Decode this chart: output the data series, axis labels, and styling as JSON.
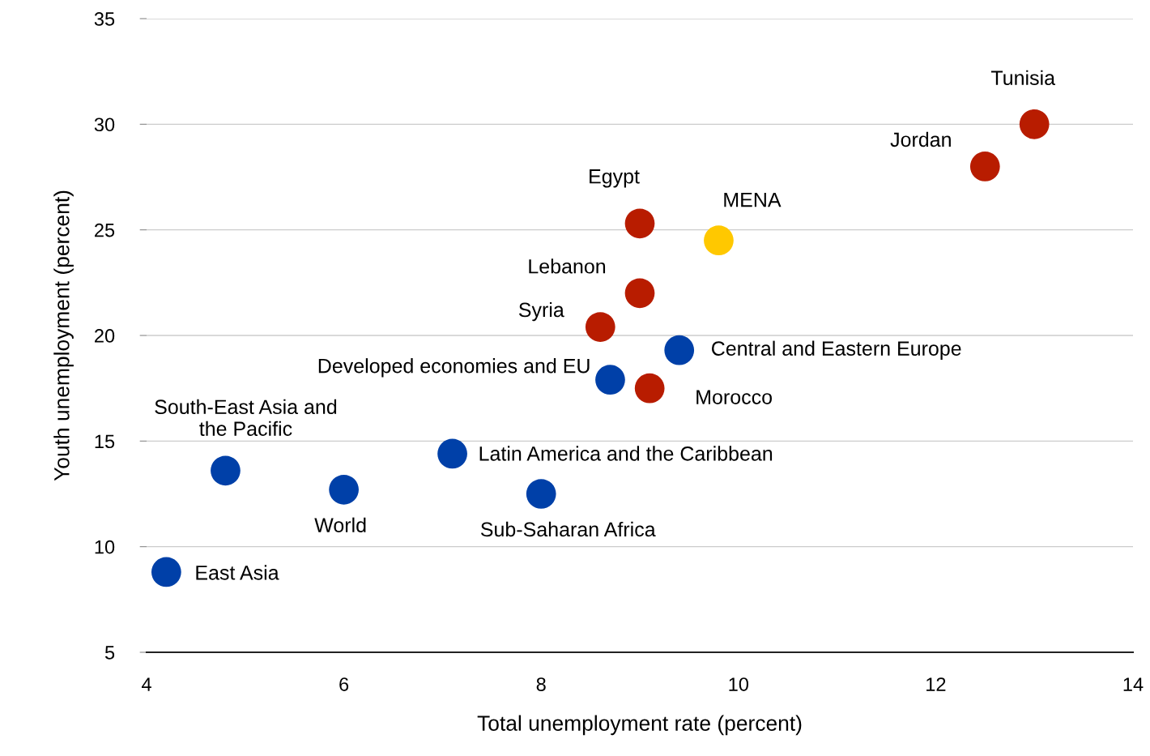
{
  "chart_data": {
    "type": "scatter",
    "xlabel": "Total unemployment rate (percent)",
    "ylabel": "Youth unemployment (percent)",
    "xlim": [
      4,
      14
    ],
    "xticks": [
      4,
      6,
      8,
      10,
      12,
      14
    ],
    "ylim": [
      5,
      35
    ],
    "yticks": [
      5,
      10,
      15,
      20,
      25,
      30,
      35
    ],
    "grid": "y",
    "marker": "circle",
    "series": [
      {
        "color": "#b81c00",
        "x": [
          13.0,
          12.5,
          9.0,
          9.0,
          8.6,
          9.1
        ],
        "values": [
          30.0,
          28.0,
          25.3,
          22.0,
          20.4,
          17.5
        ]
      },
      {
        "color": "#ffc800",
        "x": [
          9.8
        ],
        "values": [
          24.5
        ]
      },
      {
        "color": "#0040a8",
        "x": [
          9.4,
          8.7,
          7.1,
          4.8,
          6.0,
          8.0,
          4.2
        ],
        "values": [
          19.3,
          17.9,
          14.4,
          13.6,
          12.7,
          12.5,
          8.8
        ]
      }
    ],
    "annotations": [
      {
        "text": "Tunisia",
        "x": 13.0,
        "y": 30.0
      },
      {
        "text": "Jordan",
        "x": 12.5,
        "y": 28.0
      },
      {
        "text": "Egypt",
        "x": 9.0,
        "y": 25.3
      },
      {
        "text": "Lebanon",
        "x": 9.0,
        "y": 22.0
      },
      {
        "text": "Syria",
        "x": 8.6,
        "y": 20.4
      },
      {
        "text": "Morocco",
        "x": 9.1,
        "y": 17.5
      },
      {
        "text": "MENA",
        "x": 9.8,
        "y": 24.5
      },
      {
        "text": "Central and Eastern Europe",
        "x": 9.4,
        "y": 19.3
      },
      {
        "text": "Developed economies and EU",
        "x": 8.7,
        "y": 17.9
      },
      {
        "text": "Latin America and the Caribbean",
        "x": 7.1,
        "y": 14.4
      },
      {
        "text": "South-East Asia and\nthe Pacific",
        "x": 4.8,
        "y": 13.6
      },
      {
        "text": "World",
        "x": 6.0,
        "y": 12.7
      },
      {
        "text": "Sub-Saharan Africa",
        "x": 8.0,
        "y": 12.5
      },
      {
        "text": "East Asia",
        "x": 4.2,
        "y": 8.8
      }
    ]
  }
}
